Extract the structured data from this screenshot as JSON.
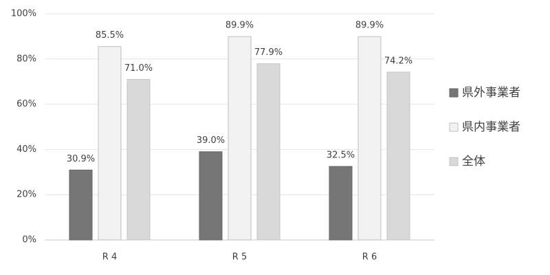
{
  "chart_data": {
    "type": "bar",
    "categories": [
      "R 4",
      "R 5",
      "R 6"
    ],
    "series": [
      {
        "name": "県外事業者",
        "color": "#767676",
        "values": [
          30.9,
          39.0,
          32.5
        ],
        "value_labels": [
          "30.9%",
          "39.0%",
          "32.5%"
        ]
      },
      {
        "name": "県内事業者",
        "color": "#f2f2f2",
        "values": [
          85.5,
          89.9,
          89.9
        ],
        "value_labels": [
          "85.5%",
          "89.9%",
          "89.9%"
        ]
      },
      {
        "name": "全体",
        "color": "#d9d9d9",
        "values": [
          71.0,
          77.9,
          74.2
        ],
        "value_labels": [
          "71.0%",
          "77.9%",
          "74.2%"
        ]
      }
    ],
    "ylim": [
      0,
      100
    ],
    "yticks": [
      {
        "value": 0,
        "label": "0%"
      },
      {
        "value": 20,
        "label": "20%"
      },
      {
        "value": 40,
        "label": "40%"
      },
      {
        "value": 60,
        "label": "60%"
      },
      {
        "value": 80,
        "label": "80%"
      },
      {
        "value": 100,
        "label": "100%"
      }
    ],
    "grid": true
  }
}
